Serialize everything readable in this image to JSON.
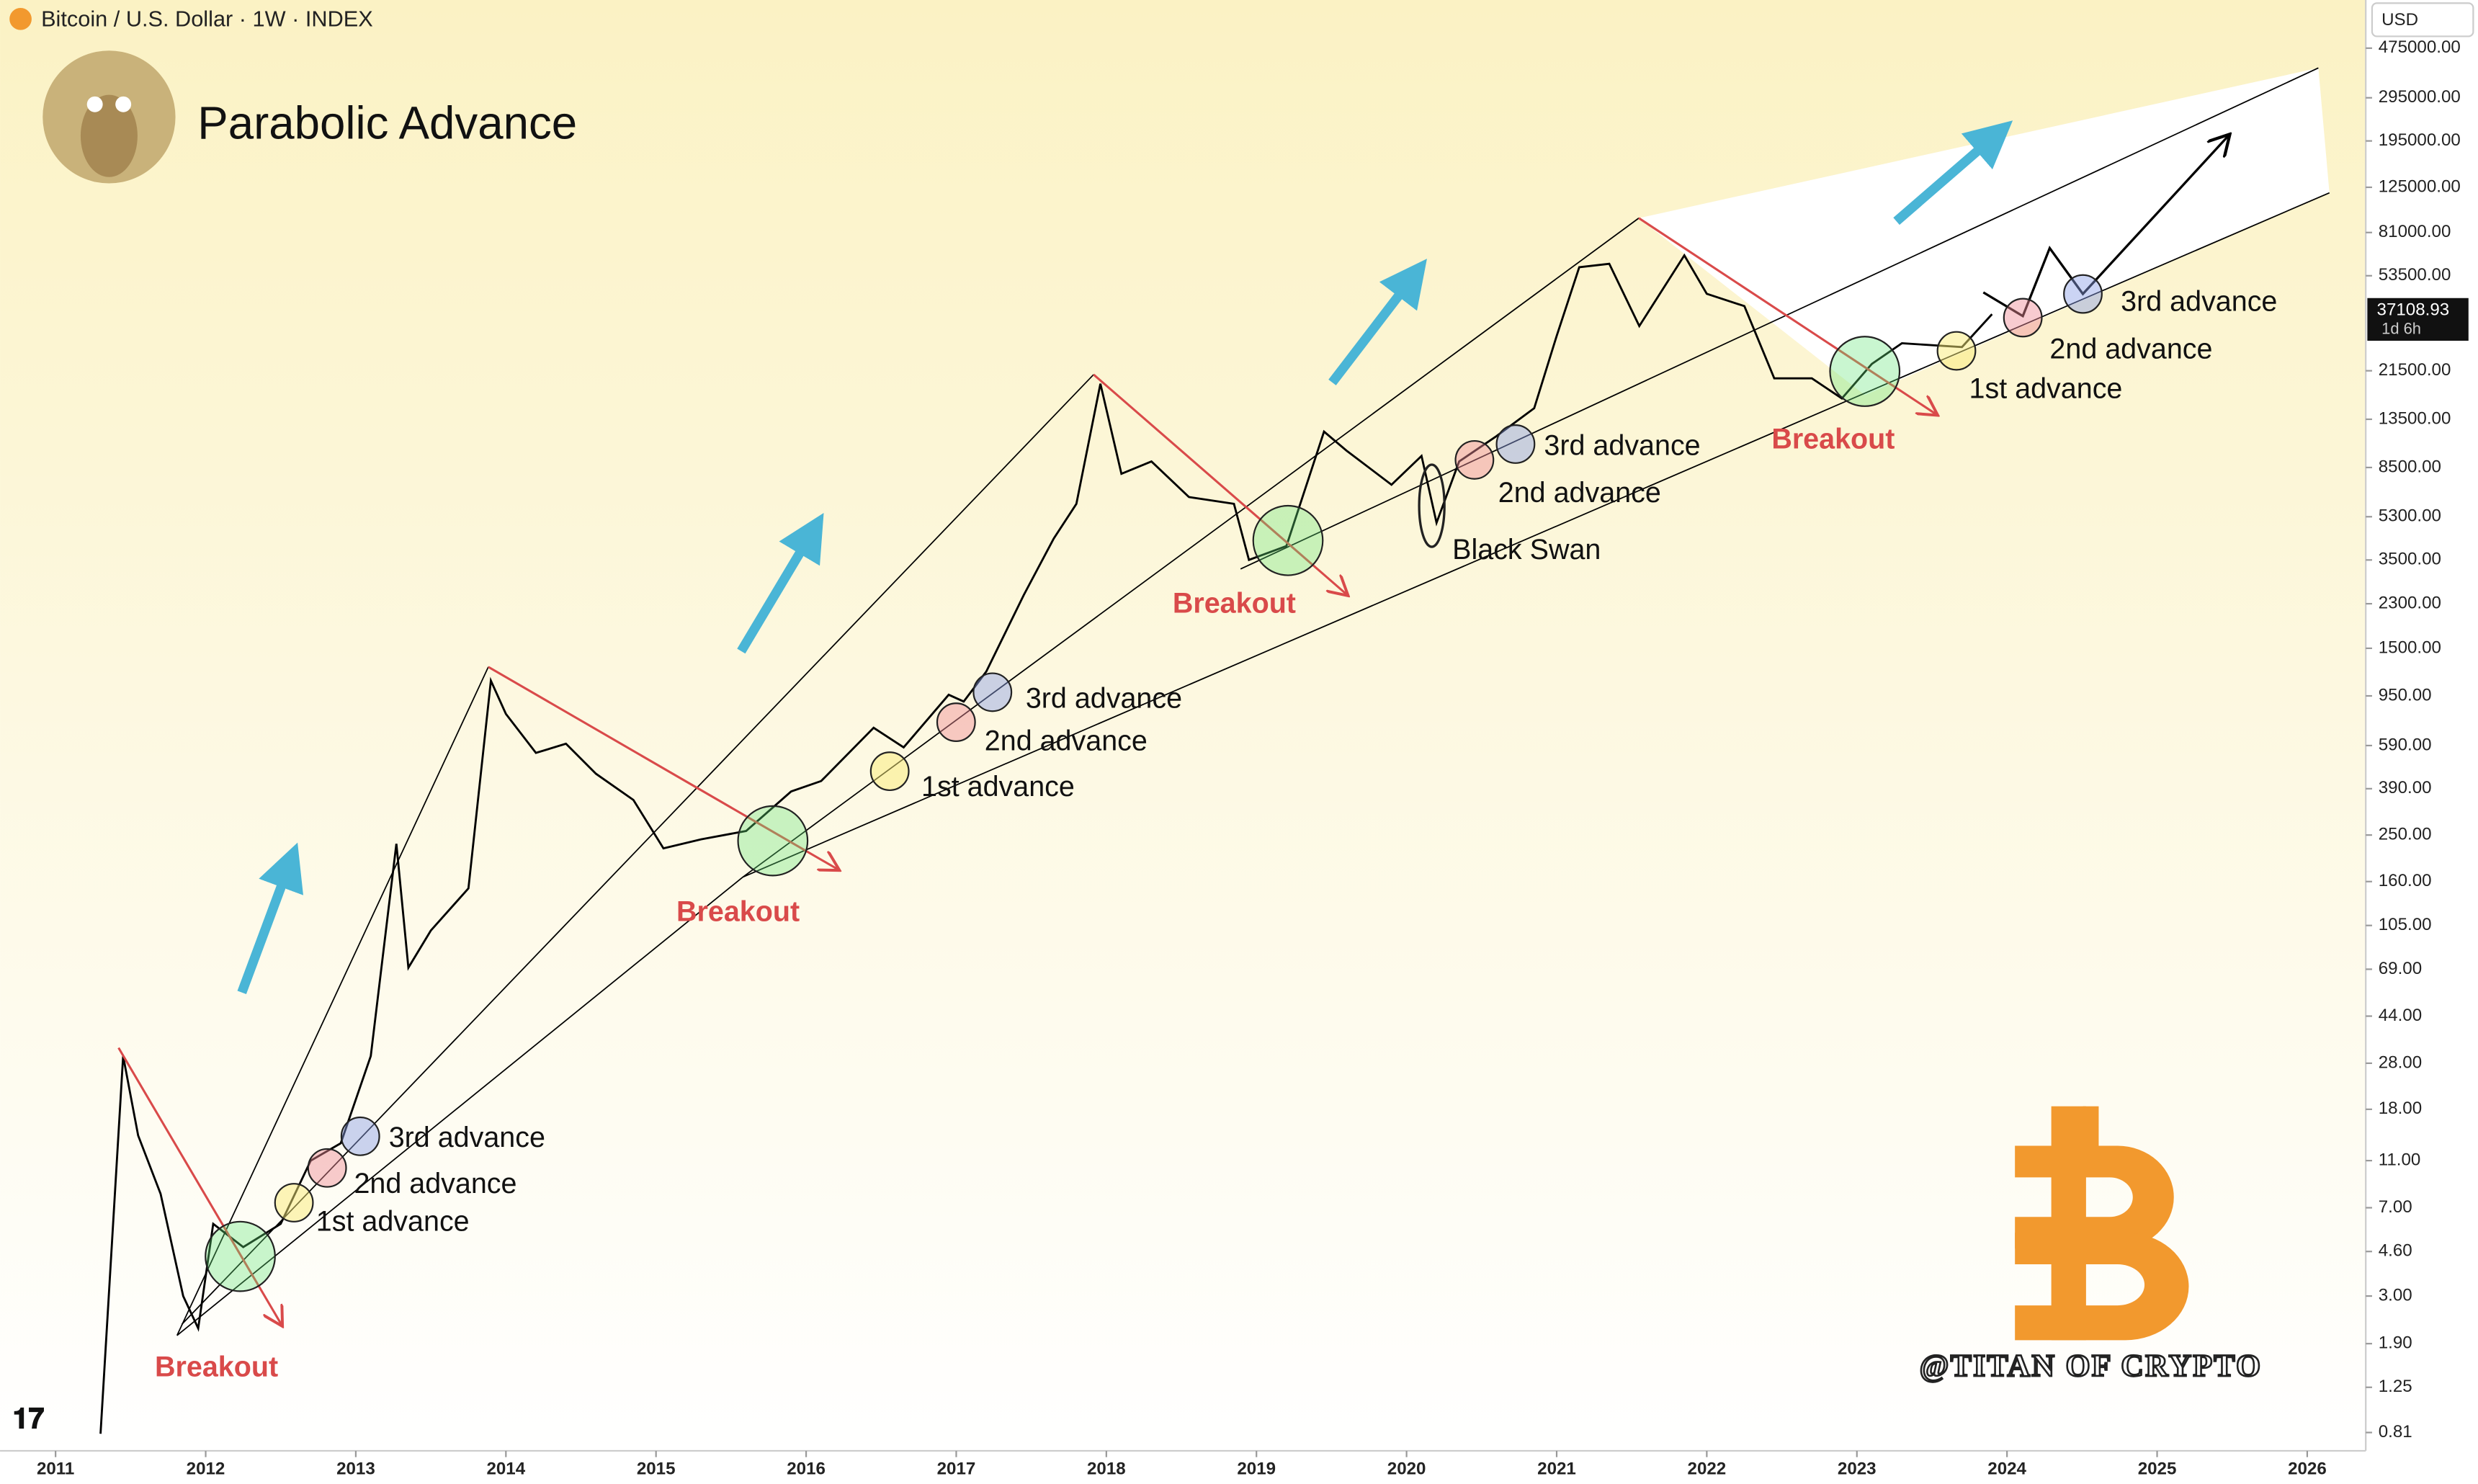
{
  "header": "Bitcoin / U.S. Dollar · 1W · INDEX",
  "currency": "USD",
  "last_price": 37108.93,
  "countdown": "1d 6h",
  "chart_data": {
    "type": "line",
    "title": "Parabolic Advance",
    "color": "#000000",
    "log_scale": true,
    "x": [
      2011.3,
      2011.45,
      2011.55,
      2011.7,
      2011.85,
      2011.95,
      2012.05,
      2012.25,
      2012.5,
      2012.7,
      2012.9,
      2013.1,
      2013.27,
      2013.35,
      2013.5,
      2013.75,
      2013.9,
      2014.0,
      2014.2,
      2014.4,
      2014.6,
      2014.85,
      2015.05,
      2015.3,
      2015.6,
      2015.9,
      2016.1,
      2016.45,
      2016.65,
      2016.95,
      2017.05,
      2017.2,
      2017.45,
      2017.65,
      2017.8,
      2017.96,
      2018.1,
      2018.3,
      2018.55,
      2018.85,
      2018.95,
      2019.2,
      2019.45,
      2019.6,
      2019.9,
      2020.1,
      2020.2,
      2020.35,
      2020.6,
      2020.85,
      2021.0,
      2021.15,
      2021.35,
      2021.55,
      2021.85,
      2022.0,
      2022.25,
      2022.45,
      2022.7,
      2022.9,
      2023.1,
      2023.3,
      2023.7,
      2023.9
    ],
    "values": [
      0.8,
      30,
      14,
      8,
      3,
      2.2,
      6,
      4.8,
      6,
      11,
      13,
      30,
      230,
      70,
      100,
      150,
      1100,
      800,
      550,
      600,
      450,
      350,
      220,
      240,
      260,
      380,
      420,
      700,
      580,
      960,
      900,
      1200,
      2500,
      4300,
      6000,
      19000,
      8000,
      9000,
      6400,
      6000,
      3500,
      4000,
      12000,
      10000,
      7200,
      9500,
      5000,
      9000,
      11500,
      15000,
      30000,
      58000,
      60000,
      33000,
      65000,
      45000,
      40000,
      20000,
      20000,
      16500,
      23000,
      28000,
      27000,
      37000
    ],
    "xlim": [
      2010.63,
      2026.39
    ],
    "xticks": [
      2011,
      2012,
      2013,
      2014,
      2015,
      2016,
      2017,
      2018,
      2019,
      2020,
      2021,
      2022,
      2023,
      2024,
      2025,
      2026
    ],
    "ylim": [
      0.69,
      540000
    ],
    "yticks": [
      0.81,
      1.25,
      {
        "value": 1.9,
        "label": "1.90"
      },
      {
        "value": 3,
        "label": "3.00"
      },
      {
        "value": 4.6,
        "label": "4.60"
      },
      {
        "value": 7,
        "label": "7.00"
      },
      {
        "value": 11,
        "label": "11.00"
      },
      {
        "value": 18,
        "label": "18.00"
      },
      {
        "value": 28,
        "label": "28.00"
      },
      {
        "value": 44,
        "label": "44.00"
      },
      {
        "value": 69,
        "label": "69.00"
      },
      {
        "value": 105,
        "label": "105.00"
      },
      {
        "value": 160,
        "label": "160.00"
      },
      {
        "value": 250,
        "label": "250.00"
      },
      {
        "value": 390,
        "label": "390.00"
      },
      {
        "value": 590,
        "label": "590.00"
      },
      {
        "value": 950,
        "label": "950.00"
      },
      {
        "value": 1500,
        "label": "1500.00"
      },
      {
        "value": 2300,
        "label": "2300.00"
      },
      {
        "value": 3500,
        "label": "3500.00"
      },
      {
        "value": 5300,
        "label": "5300.00"
      },
      {
        "value": 8500,
        "label": "8500.00"
      },
      {
        "value": 13500,
        "label": "13500.00"
      },
      {
        "value": 21500,
        "label": "21500.00"
      },
      {
        "value": 53500,
        "label": "53500.00"
      },
      {
        "value": 81000,
        "label": "81000.00"
      },
      {
        "value": 125000,
        "label": "125000.00"
      },
      {
        "value": 195000,
        "label": "195000.00"
      },
      {
        "value": 295000,
        "label": "295000.00"
      },
      {
        "value": 475000,
        "label": "475000.00"
      }
    ],
    "annotations": [
      "Breakout",
      "Breakout",
      "Breakout",
      "Breakout",
      "1st advance",
      "1st advance",
      "1st advance",
      "2nd advance",
      "2nd advance",
      "2nd advance",
      "2nd advance",
      "3rd advance",
      "3rd advance",
      "3rd advance",
      "3rd advance",
      "Black Swan"
    ],
    "watermark": "@TITAN OF CRYPTO"
  }
}
